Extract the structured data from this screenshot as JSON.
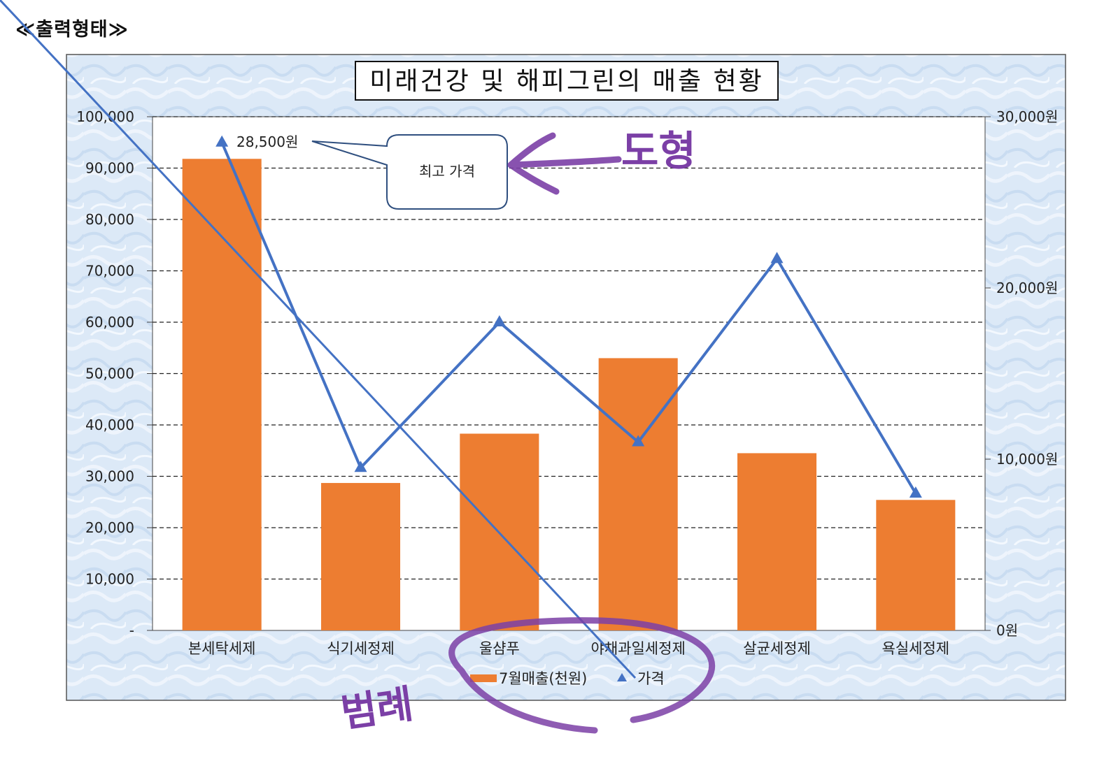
{
  "page": {
    "heading": "≪출력형태≫"
  },
  "chart_data": {
    "type": "bar",
    "title": "미래건강 및 해피그린의 매출 현황",
    "categories": [
      "본세탁세제",
      "식기세정제",
      "울샴푸",
      "야채과일세정제",
      "살균세정제",
      "욕실세정제"
    ],
    "series": [
      {
        "name": "7월매출(천원)",
        "type": "bar",
        "axis": "left",
        "color": "#ed7d31",
        "values": [
          91800,
          28700,
          38300,
          53000,
          34500,
          25400
        ]
      },
      {
        "name": "가격",
        "type": "line",
        "axis": "right",
        "color": "#4472c4",
        "values": [
          28500,
          9500,
          18000,
          11000,
          21700,
          8000
        ]
      }
    ],
    "y_left": {
      "ylim": [
        0,
        100000
      ],
      "ticks": [
        "-",
        "10,000",
        "20,000",
        "30,000",
        "40,000",
        "50,000",
        "60,000",
        "70,000",
        "80,000",
        "90,000",
        "100,000"
      ]
    },
    "y_right": {
      "ylim": [
        0,
        30000
      ],
      "ticks": [
        "0원",
        "10,000원",
        "20,000원",
        "30,000원"
      ]
    },
    "grid": true,
    "legend_position": "bottom",
    "annotations": {
      "data_label": "28,500원",
      "callout": "최고 가격"
    }
  },
  "handwritten": {
    "shape_note": "도형",
    "legend_note": "범례"
  },
  "colors": {
    "plot_bg": "#ffffff",
    "chart_bg": "#dce9f7",
    "annotation": "#7b3fa6"
  }
}
